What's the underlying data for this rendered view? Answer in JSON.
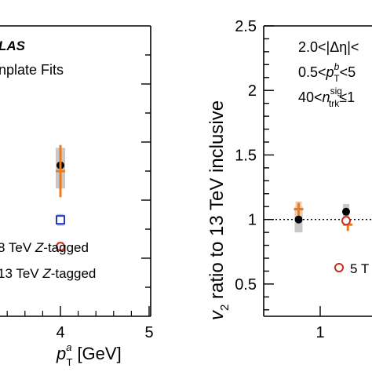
{
  "chart_data": [
    {
      "type": "scatter",
      "panel": "left",
      "xlabel_main": "p",
      "xlabel_sup": "a",
      "xlabel_sub": "T",
      "xlabel_unit": "[GeV]",
      "xlim": [
        3.1,
        5
      ],
      "ylim": [
        0,
        2.5
      ],
      "x_ticks": [
        "4",
        "5"
      ],
      "annotations": {
        "atlas": "LAS",
        "method": "nplate Fits"
      },
      "legend": [
        {
          "text_pre": "8 TeV ",
          "italic": "Z",
          "text_post": "-tagged",
          "marker": "open-square",
          "color": "#1f3fbf"
        },
        {
          "text_pre": "13 TeV ",
          "italic": "Z",
          "text_post": "-tagged",
          "marker": "filled-circle",
          "color": "#000000"
        }
      ],
      "series": [
        {
          "marker": "filled-circle",
          "color": "#000000",
          "x": [
            4.0
          ],
          "y": [
            1.3
          ]
        },
        {
          "marker": "open-cross",
          "color": "#f07a1a",
          "x": [
            4.0
          ],
          "y": [
            1.25
          ],
          "err": [
            0.09
          ]
        },
        {
          "marker": "open-square",
          "color": "#1f3fbf",
          "x": [
            4.0
          ],
          "y": [
            0.83
          ]
        },
        {
          "marker": "open-circle",
          "color": "#cc2a1a",
          "x": [
            4.0
          ],
          "y": [
            0.6
          ]
        }
      ]
    },
    {
      "type": "scatter",
      "panel": "right",
      "ylabel_main": "v",
      "ylabel_sub": "2",
      "ylabel_rest": " ratio to 13 TeV inclusive",
      "ylim": [
        0.25,
        2.5
      ],
      "y_ticks": [
        "0.5",
        "1",
        "1.5",
        "2",
        "2.5"
      ],
      "x_ticks": [
        "1"
      ],
      "reference_line": 1,
      "annotations": {
        "eta": "2.0<|Δη|<",
        "pt_pre": "0.5<",
        "pt_main": "p",
        "pt_sup": "b",
        "pt_sub": "T",
        "pt_post": "<5",
        "ntrk_pre": "40<",
        "ntrk_main": "n",
        "ntrk_sup": "sig",
        "ntrk_sub": "trk",
        "ntrk_post": "≤1"
      },
      "legend": [
        {
          "text": "5 T",
          "marker": "open-circle",
          "color": "#cc2a1a"
        }
      ],
      "series": [
        {
          "marker": "filled-circle",
          "color": "#000000",
          "x": [
            0.75,
            1.3
          ],
          "y": [
            1.0,
            1.06
          ]
        },
        {
          "marker": "open-cross",
          "color": "#f07a1a",
          "x": [
            0.75,
            1.32
          ],
          "y": [
            1.08,
            0.96
          ]
        },
        {
          "marker": "open-circle",
          "color": "#cc2a1a",
          "x": [
            1.3
          ],
          "y": [
            0.99
          ]
        }
      ]
    }
  ]
}
